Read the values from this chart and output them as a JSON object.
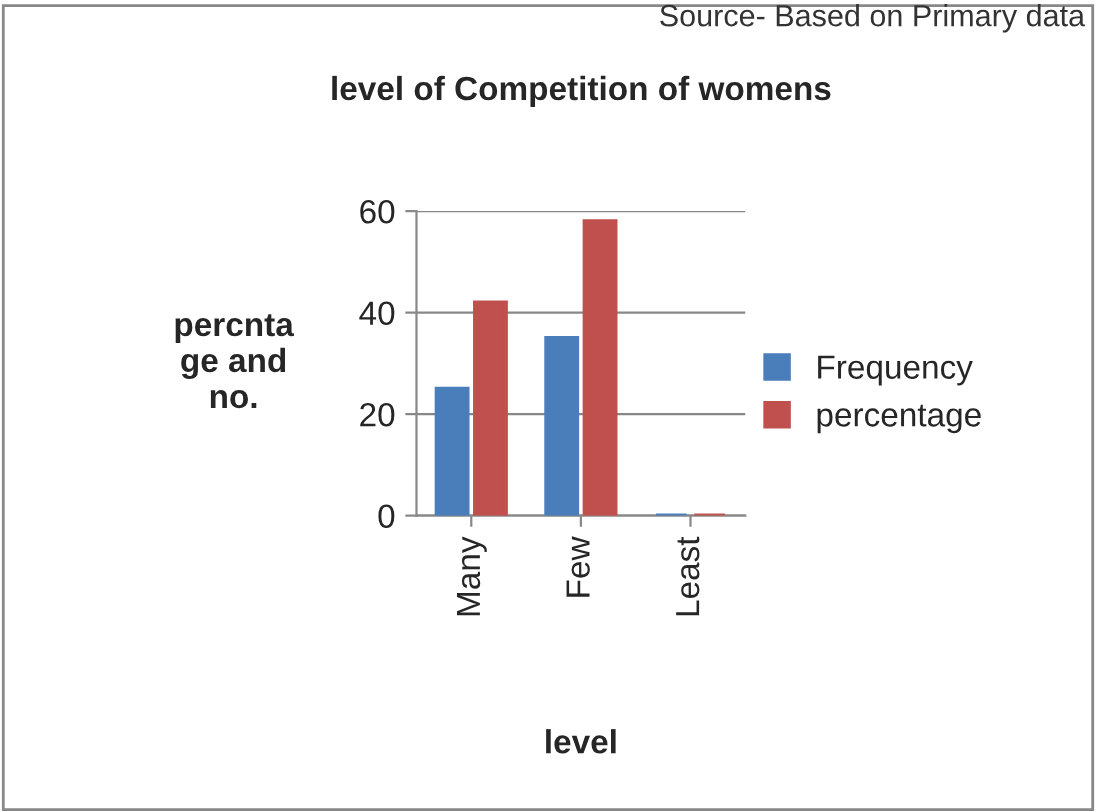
{
  "chart_data": {
    "type": "bar",
    "title": "level of Competition of womens",
    "xlabel": "level",
    "ylabel": "percnta\nge and\nno.",
    "categories": [
      "Many",
      "Few",
      "Least"
    ],
    "series": [
      {
        "name": "Frequency",
        "color": "#4a7ebb",
        "values": [
          25,
          35,
          0
        ]
      },
      {
        "name": "percentage",
        "color": "#c0504d",
        "values": [
          42,
          58,
          0
        ]
      }
    ],
    "ylim": [
      0,
      60
    ],
    "yticks": [
      0,
      20,
      40,
      60
    ],
    "grid": "y",
    "legend": "right",
    "annotations": [
      "Source- Based on Primary data"
    ]
  }
}
